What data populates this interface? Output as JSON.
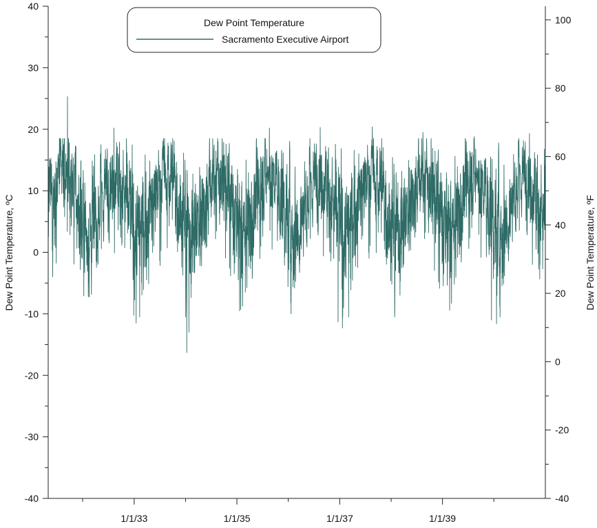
{
  "chart_data": {
    "type": "line",
    "title": "",
    "xlabel": "",
    "ylabel_left": "Dew Point Temperature, ºC",
    "ylabel_right": "Dew Point Temperature, ºF",
    "ylim_left": [
      -40,
      40
    ],
    "ylim_right": [
      -40,
      104
    ],
    "xlim": [
      "1931-05-01",
      "1941-01-01"
    ],
    "x_tick_labels": [
      "1/1/33",
      "1/1/35",
      "1/1/37",
      "1/1/39"
    ],
    "x_tick_dates": [
      "1933-01-01",
      "1935-01-01",
      "1937-01-01",
      "1939-01-01"
    ],
    "y_left_ticks": [
      "40",
      "30",
      "20",
      "10",
      "0",
      "-10",
      "-20",
      "-30",
      "-40"
    ],
    "y_right_ticks": [
      "100",
      "80",
      "60",
      "40",
      "20",
      "0",
      "-20",
      "-40"
    ],
    "grid": false,
    "legend": {
      "title": "Dew Point Temperature",
      "placement": "top-center"
    },
    "series": [
      {
        "name": "Sacramento Executive Airport",
        "color": "#2e6b66",
        "sampling": "daily",
        "seasonal_cycle": {
          "summer_peak_monthly_mean_c": 13,
          "winter_trough_monthly_mean_c": 4
        },
        "observed_max_c": 25.3,
        "observed_max_date": "1931-09-15",
        "observed_min_c": -16.3,
        "observed_min_date": "1934-01-10",
        "notable_lows": [
          {
            "date": "1933-01-15",
            "value_c": -11.5
          },
          {
            "date": "1934-01-25",
            "value_c": -13.0
          },
          {
            "date": "1935-01-20",
            "value_c": -9.5
          },
          {
            "date": "1936-12-20",
            "value_c": -11.3
          },
          {
            "date": "1937-01-20",
            "value_c": -12.3
          },
          {
            "date": "1939-12-15",
            "value_c": -11.0
          },
          {
            "date": "1940-01-20",
            "value_c": -11.6
          }
        ],
        "notable_highs": [
          {
            "date": "1932-08-10",
            "value_c": 20.2
          },
          {
            "date": "1934-08-20",
            "value_c": 18.0
          },
          {
            "date": "1935-08-20",
            "value_c": 20.2
          },
          {
            "date": "1936-08-15",
            "value_c": 20.3
          },
          {
            "date": "1937-08-20",
            "value_c": 20.4
          },
          {
            "date": "1938-08-15",
            "value_c": 19.5
          },
          {
            "date": "1939-08-15",
            "value_c": 18.8
          },
          {
            "date": "1940-09-10",
            "value_c": 19.3
          }
        ]
      }
    ]
  }
}
